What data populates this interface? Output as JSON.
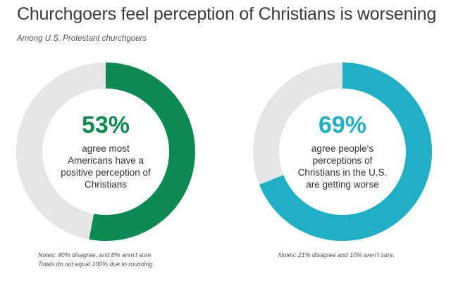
{
  "title": "Churchgoers feel perception of Christians is worsening",
  "subtitle": "Among U.S. Protestant churchgoers",
  "colors": {
    "left_accent": "#0b8a52",
    "right_accent": "#1fb0c6",
    "track": "#e5e5e5"
  },
  "chart_data": [
    {
      "type": "pie",
      "values": [
        53,
        47
      ],
      "percent_label": "53%",
      "description": "agree most Americans have a positive perception of Christians",
      "note_lines": [
        "Notes: 40% disagree, and 8% aren't sure.",
        "Totals do not equal 100% due to rounding."
      ]
    },
    {
      "type": "pie",
      "values": [
        69,
        31
      ],
      "percent_label": "69%",
      "description": "agree people's perceptions of Christians in the U.S. are getting worse",
      "note_lines": [
        "Notes: 21% disagree and 10% aren't sure."
      ]
    }
  ]
}
